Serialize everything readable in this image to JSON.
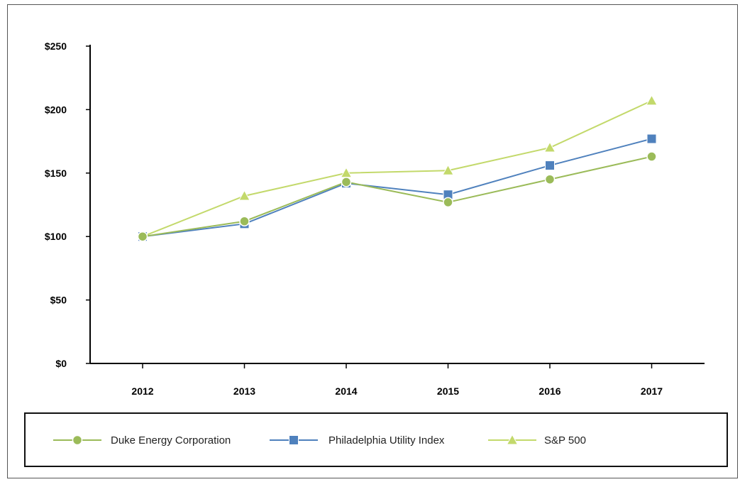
{
  "chart_data": {
    "type": "line",
    "x": [
      "2012",
      "2013",
      "2014",
      "2015",
      "2016",
      "2017"
    ],
    "ylim": [
      0,
      250
    ],
    "yticks": [
      0,
      50,
      100,
      150,
      200,
      250
    ],
    "ytick_labels": [
      "$0",
      "$50",
      "$100",
      "$150",
      "$200",
      "$250"
    ],
    "grid": false,
    "legend_position": "bottom",
    "series": [
      {
        "name": "Duke Energy Corporation",
        "values": [
          100,
          112,
          143,
          127,
          145,
          163
        ],
        "color": "#9bbb59",
        "marker": "circle"
      },
      {
        "name": "Philadelphia Utility Index",
        "values": [
          100,
          110,
          142,
          133,
          156,
          177
        ],
        "color": "#4f81bd",
        "marker": "square"
      },
      {
        "name": "S&P 500",
        "values": [
          100,
          132,
          150,
          152,
          170,
          207
        ],
        "color": "#c3d96b",
        "marker": "triangle"
      }
    ]
  }
}
